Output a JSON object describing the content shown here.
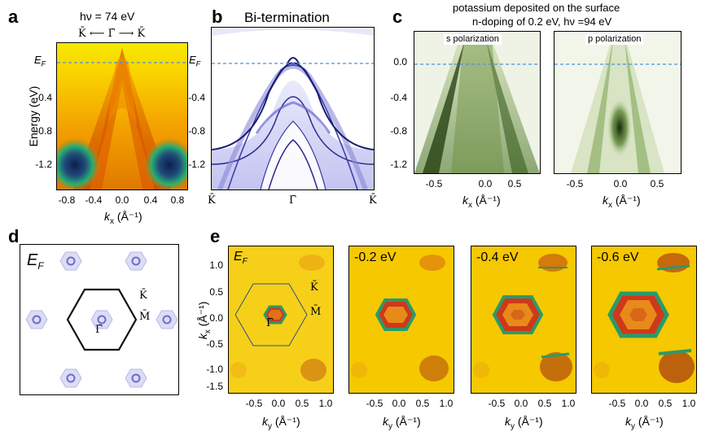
{
  "panel_letters": [
    "a",
    "b",
    "c",
    "d",
    "e"
  ],
  "panel_a": {
    "photon": "hν = 74 eV",
    "direction": "K̄ ⟵ Γ̄ ⟶ K̄",
    "ef": "E",
    "ef_sub": "F",
    "ylabel": "Energy (eV)",
    "yticks": [
      "-0.4",
      "-0.8",
      "-1.2"
    ],
    "xticks": [
      "-0.8",
      "-0.4",
      "0.0",
      "0.4",
      "0.8"
    ],
    "xlabel": "k",
    "xlabel_sub": "x",
    "xlabel_unit": " (Å⁻¹)"
  },
  "panel_b": {
    "title": "Bi-termination",
    "ef": "E",
    "ef_sub": "F",
    "yticks": [
      "-0.4",
      "-0.8",
      "-1.2"
    ],
    "xticks": [
      "K̄",
      "Γ̄",
      "K̄"
    ]
  },
  "panel_c": {
    "title_line1": "potassium deposited on the surface",
    "title_line2": "n-doping of 0.2 eV,  hν =94 eV",
    "s_label": "s polarization",
    "p_label": "p polarization",
    "yticks": [
      "0.0",
      "-0.4",
      "-0.8",
      "-1.2"
    ],
    "xticks": [
      "-0.5",
      "0.0",
      "0.5"
    ],
    "xlabel": "k",
    "xlabel_sub": "x",
    "xlabel_unit": " (Å⁻¹)"
  },
  "panel_d": {
    "ef": "E",
    "ef_sub": "F",
    "points": [
      "K̄",
      "M̄",
      "Γ̄"
    ]
  },
  "panel_e": {
    "sublabels": [
      "E",
      "-0.2 eV",
      "-0.4 eV",
      "-0.6 eV"
    ],
    "ef_sub": "F",
    "points": [
      "K̄",
      "M̄",
      "Γ̄"
    ],
    "yticks": [
      "1.0",
      "0.5",
      "0.0",
      "-0.5",
      "-1.0",
      "-1.5"
    ],
    "xticks": [
      "-0.5",
      "0.0",
      "0.5",
      "1.0"
    ],
    "ylabel": "k",
    "ylabel_sub": "x",
    "ylabel_unit": " (Å⁻¹)",
    "xlabel": "k",
    "xlabel_sub": "y",
    "xlabel_unit": " (Å⁻¹)"
  },
  "colors": {
    "dashed_line": "#4a90d9",
    "hexagon_e": "#2e4f8a"
  }
}
